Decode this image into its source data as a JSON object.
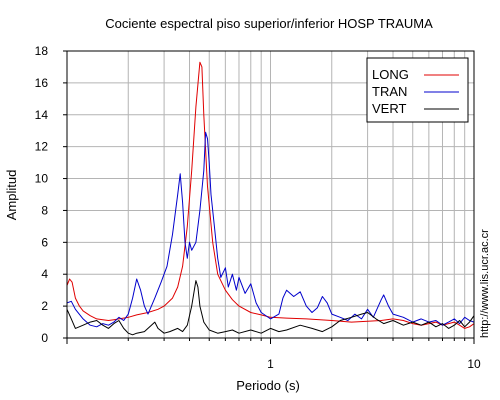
{
  "chart_data": {
    "type": "line",
    "title": "Cociente espectral piso superior/inferior  HOSP TRAUMA",
    "xlabel": "Periodo (s)",
    "ylabel": "Amplitud",
    "x_scale": "log",
    "xlim": [
      0.1,
      10
    ],
    "ylim": [
      0,
      18
    ],
    "x_tick_labels": [
      {
        "value": 1,
        "label": "1"
      },
      {
        "value": 10,
        "label": "10"
      }
    ],
    "y_ticks": [
      0,
      2,
      4,
      6,
      8,
      10,
      12,
      14,
      16,
      18
    ],
    "grid": true,
    "legend_position": "top-right",
    "series": [
      {
        "name": "LONG",
        "color": "#e00000",
        "points": [
          [
            0.1,
            3.3
          ],
          [
            0.103,
            3.7
          ],
          [
            0.106,
            3.5
          ],
          [
            0.11,
            2.5
          ],
          [
            0.115,
            2.0
          ],
          [
            0.12,
            1.7
          ],
          [
            0.13,
            1.4
          ],
          [
            0.14,
            1.2
          ],
          [
            0.15,
            1.15
          ],
          [
            0.16,
            1.1
          ],
          [
            0.17,
            1.15
          ],
          [
            0.18,
            1.2
          ],
          [
            0.2,
            1.3
          ],
          [
            0.22,
            1.45
          ],
          [
            0.25,
            1.6
          ],
          [
            0.28,
            1.8
          ],
          [
            0.3,
            2.0
          ],
          [
            0.33,
            2.5
          ],
          [
            0.35,
            3.2
          ],
          [
            0.37,
            4.5
          ],
          [
            0.39,
            7.0
          ],
          [
            0.41,
            10.5
          ],
          [
            0.43,
            14.5
          ],
          [
            0.45,
            17.3
          ],
          [
            0.46,
            17.0
          ],
          [
            0.47,
            14.0
          ],
          [
            0.49,
            9.5
          ],
          [
            0.52,
            6.0
          ],
          [
            0.55,
            4.0
          ],
          [
            0.6,
            3.0
          ],
          [
            0.65,
            2.4
          ],
          [
            0.7,
            2.0
          ],
          [
            0.8,
            1.6
          ],
          [
            0.9,
            1.45
          ],
          [
            1.0,
            1.3
          ],
          [
            1.2,
            1.25
          ],
          [
            1.5,
            1.2
          ],
          [
            2.0,
            1.1
          ],
          [
            2.5,
            1.0
          ],
          [
            3.0,
            1.05
          ],
          [
            3.5,
            1.1
          ],
          [
            4.0,
            1.2
          ],
          [
            4.5,
            1.1
          ],
          [
            5.0,
            0.9
          ],
          [
            5.5,
            0.8
          ],
          [
            6.0,
            0.9
          ],
          [
            6.5,
            1.0
          ],
          [
            7.0,
            0.8
          ],
          [
            7.5,
            0.9
          ],
          [
            8.0,
            1.0
          ],
          [
            8.5,
            0.8
          ],
          [
            9.0,
            0.6
          ],
          [
            9.5,
            0.7
          ],
          [
            10.0,
            0.9
          ]
        ]
      },
      {
        "name": "TRAN",
        "color": "#0000cc",
        "points": [
          [
            0.1,
            2.2
          ],
          [
            0.105,
            2.3
          ],
          [
            0.11,
            1.8
          ],
          [
            0.12,
            1.2
          ],
          [
            0.13,
            0.8
          ],
          [
            0.14,
            0.7
          ],
          [
            0.15,
            0.9
          ],
          [
            0.16,
            0.8
          ],
          [
            0.17,
            1.0
          ],
          [
            0.18,
            1.3
          ],
          [
            0.19,
            1.1
          ],
          [
            0.2,
            1.5
          ],
          [
            0.21,
            2.5
          ],
          [
            0.22,
            3.7
          ],
          [
            0.23,
            3.0
          ],
          [
            0.24,
            2.0
          ],
          [
            0.25,
            1.5
          ],
          [
            0.27,
            2.5
          ],
          [
            0.29,
            3.5
          ],
          [
            0.31,
            4.5
          ],
          [
            0.33,
            6.5
          ],
          [
            0.35,
            9.0
          ],
          [
            0.36,
            10.3
          ],
          [
            0.37,
            8.5
          ],
          [
            0.38,
            6.0
          ],
          [
            0.39,
            5.0
          ],
          [
            0.4,
            6.0
          ],
          [
            0.41,
            5.5
          ],
          [
            0.43,
            6.0
          ],
          [
            0.45,
            8.0
          ],
          [
            0.47,
            10.5
          ],
          [
            0.48,
            12.9
          ],
          [
            0.49,
            12.5
          ],
          [
            0.5,
            11.0
          ],
          [
            0.51,
            9.0
          ],
          [
            0.53,
            7.0
          ],
          [
            0.55,
            5.0
          ],
          [
            0.57,
            3.8
          ],
          [
            0.6,
            4.4
          ],
          [
            0.62,
            3.2
          ],
          [
            0.65,
            4.0
          ],
          [
            0.68,
            3.0
          ],
          [
            0.7,
            3.8
          ],
          [
            0.75,
            2.8
          ],
          [
            0.8,
            3.4
          ],
          [
            0.85,
            2.2
          ],
          [
            0.9,
            1.6
          ],
          [
            1.0,
            1.2
          ],
          [
            1.1,
            1.5
          ],
          [
            1.15,
            2.5
          ],
          [
            1.2,
            3.0
          ],
          [
            1.3,
            2.6
          ],
          [
            1.4,
            2.9
          ],
          [
            1.5,
            2.0
          ],
          [
            1.6,
            1.6
          ],
          [
            1.7,
            1.9
          ],
          [
            1.8,
            2.6
          ],
          [
            1.9,
            2.2
          ],
          [
            2.0,
            1.5
          ],
          [
            2.2,
            1.3
          ],
          [
            2.4,
            1.1
          ],
          [
            2.6,
            1.5
          ],
          [
            2.8,
            1.2
          ],
          [
            3.0,
            1.8
          ],
          [
            3.2,
            1.3
          ],
          [
            3.5,
            2.4
          ],
          [
            3.6,
            2.7
          ],
          [
            3.8,
            2.0
          ],
          [
            4.0,
            1.5
          ],
          [
            4.5,
            1.3
          ],
          [
            5.0,
            1.0
          ],
          [
            5.5,
            1.2
          ],
          [
            6.0,
            1.0
          ],
          [
            6.5,
            1.1
          ],
          [
            7.0,
            0.8
          ],
          [
            7.5,
            1.0
          ],
          [
            8.0,
            1.2
          ],
          [
            8.5,
            0.9
          ],
          [
            9.0,
            1.3
          ],
          [
            9.5,
            1.1
          ],
          [
            10.0,
            1.0
          ]
        ]
      },
      {
        "name": "VERT",
        "color": "#000000",
        "points": [
          [
            0.1,
            1.8
          ],
          [
            0.105,
            1.2
          ],
          [
            0.11,
            0.6
          ],
          [
            0.12,
            0.8
          ],
          [
            0.13,
            1.0
          ],
          [
            0.14,
            1.1
          ],
          [
            0.15,
            0.8
          ],
          [
            0.16,
            0.6
          ],
          [
            0.17,
            0.9
          ],
          [
            0.18,
            1.1
          ],
          [
            0.19,
            0.6
          ],
          [
            0.2,
            0.3
          ],
          [
            0.21,
            0.2
          ],
          [
            0.22,
            0.3
          ],
          [
            0.24,
            0.4
          ],
          [
            0.26,
            0.8
          ],
          [
            0.27,
            1.0
          ],
          [
            0.28,
            0.6
          ],
          [
            0.3,
            0.3
          ],
          [
            0.32,
            0.4
          ],
          [
            0.35,
            0.6
          ],
          [
            0.37,
            0.4
          ],
          [
            0.39,
            0.8
          ],
          [
            0.41,
            2.0
          ],
          [
            0.43,
            3.6
          ],
          [
            0.44,
            3.2
          ],
          [
            0.45,
            2.0
          ],
          [
            0.47,
            1.0
          ],
          [
            0.5,
            0.5
          ],
          [
            0.55,
            0.3
          ],
          [
            0.6,
            0.4
          ],
          [
            0.65,
            0.5
          ],
          [
            0.7,
            0.3
          ],
          [
            0.8,
            0.5
          ],
          [
            0.9,
            0.3
          ],
          [
            1.0,
            0.6
          ],
          [
            1.1,
            0.4
          ],
          [
            1.2,
            0.5
          ],
          [
            1.4,
            0.8
          ],
          [
            1.6,
            0.6
          ],
          [
            1.8,
            0.4
          ],
          [
            2.0,
            0.7
          ],
          [
            2.2,
            1.1
          ],
          [
            2.5,
            1.3
          ],
          [
            2.8,
            1.5
          ],
          [
            3.0,
            1.6
          ],
          [
            3.3,
            1.2
          ],
          [
            3.6,
            0.9
          ],
          [
            4.0,
            1.1
          ],
          [
            4.5,
            0.8
          ],
          [
            5.0,
            1.0
          ],
          [
            5.5,
            0.8
          ],
          [
            6.0,
            1.0
          ],
          [
            6.5,
            0.7
          ],
          [
            7.0,
            0.9
          ],
          [
            7.5,
            0.6
          ],
          [
            8.0,
            0.8
          ],
          [
            8.5,
            1.1
          ],
          [
            9.0,
            0.7
          ],
          [
            9.5,
            1.0
          ],
          [
            10.0,
            1.4
          ]
        ]
      }
    ]
  },
  "watermark": "http://www.lis.ucr.ac.cr"
}
